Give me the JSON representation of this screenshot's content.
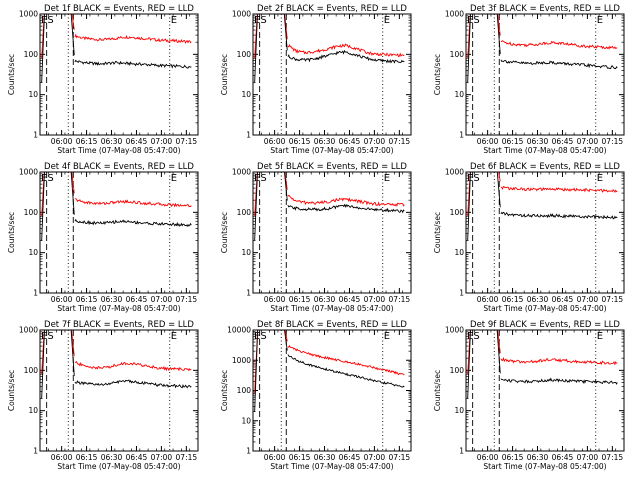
{
  "figure": {
    "colors": {
      "events": "#000000",
      "lld": "#ff0000",
      "axes": "#000000",
      "background": "#ffffff"
    }
  },
  "chart_data": [
    {
      "type": "line",
      "title": "Det 1f BLACK = Events, RED = LLD",
      "xlabel": "Start Time (07-May-08 05:47:00)",
      "ylabel": "Counts/sec",
      "yscale": "log",
      "ylim": [
        1,
        1000
      ],
      "yticks": [
        "1",
        "10",
        "100",
        "1000"
      ],
      "xlim": [
        "05:47",
        "07:22"
      ],
      "xticks": [
        "06:00",
        "06:15",
        "06:30",
        "06:45",
        "07:00",
        "07:15"
      ],
      "markers": [
        "ES",
        "E"
      ],
      "dotted_lines": [
        "06:04",
        "07:05"
      ],
      "dashed_lines": [
        "05:51",
        "06:07"
      ],
      "series": [
        {
          "color": "red",
          "x": [
            "06:08",
            "06:13",
            "06:18",
            "06:23",
            "06:28",
            "06:33",
            "06:38",
            "06:43",
            "06:48",
            "06:53",
            "06:58",
            "07:03",
            "07:08",
            "07:13",
            "07:18"
          ],
          "values": [
            290,
            250,
            240,
            230,
            235,
            250,
            270,
            265,
            250,
            240,
            225,
            220,
            215,
            210,
            205
          ]
        },
        {
          "color": "black",
          "x": [
            "06:08",
            "06:13",
            "06:18",
            "06:23",
            "06:28",
            "06:33",
            "06:38",
            "06:43",
            "06:48",
            "06:53",
            "06:58",
            "07:03",
            "07:08",
            "07:13",
            "07:18"
          ],
          "values": [
            68,
            63,
            60,
            58,
            60,
            62,
            60,
            58,
            57,
            55,
            53,
            52,
            51,
            50,
            49
          ]
        }
      ]
    },
    {
      "type": "line",
      "title": "Det 2f BLACK = Events, RED = LLD",
      "xlabel": "Start Time (07-May-08 05:47:00)",
      "ylabel": "Counts/sec",
      "yscale": "log",
      "ylim": [
        1,
        1000
      ],
      "yticks": [
        "1",
        "10",
        "100",
        "1000"
      ],
      "xlim": [
        "05:47",
        "07:22"
      ],
      "xticks": [
        "06:00",
        "06:15",
        "06:30",
        "06:45",
        "07:00",
        "07:15"
      ],
      "markers": [
        "ES",
        "E"
      ],
      "dotted_lines": [
        "06:04",
        "07:05"
      ],
      "dashed_lines": [
        "05:51",
        "06:07"
      ],
      "series": [
        {
          "color": "red",
          "x": [
            "06:08",
            "06:13",
            "06:18",
            "06:23",
            "06:28",
            "06:33",
            "06:38",
            "06:43",
            "06:48",
            "06:53",
            "06:58",
            "07:03",
            "07:08",
            "07:13",
            "07:18"
          ],
          "values": [
            170,
            120,
            110,
            115,
            125,
            140,
            160,
            165,
            145,
            120,
            105,
            100,
            98,
            96,
            95
          ]
        },
        {
          "color": "black",
          "x": [
            "06:08",
            "06:13",
            "06:18",
            "06:23",
            "06:28",
            "06:33",
            "06:38",
            "06:43",
            "06:48",
            "06:53",
            "06:58",
            "07:03",
            "07:08",
            "07:13",
            "07:18"
          ],
          "values": [
            90,
            75,
            72,
            75,
            85,
            95,
            110,
            115,
            100,
            85,
            75,
            70,
            68,
            66,
            65
          ]
        }
      ]
    },
    {
      "type": "line",
      "title": "Det 3f BLACK = Events, RED = LLD",
      "xlabel": "Start Time (07-May-08 05:47:00)",
      "ylabel": "Counts/sec",
      "yscale": "log",
      "ylim": [
        1,
        1000
      ],
      "yticks": [
        "1",
        "10",
        "100",
        "1000"
      ],
      "xlim": [
        "05:47",
        "07:22"
      ],
      "xticks": [
        "06:00",
        "06:15",
        "06:30",
        "06:45",
        "07:00",
        "07:15"
      ],
      "markers": [
        "ES",
        "E"
      ],
      "dotted_lines": [
        "06:04",
        "07:05"
      ],
      "dashed_lines": [
        "05:51",
        "06:07"
      ],
      "series": [
        {
          "color": "red",
          "x": [
            "06:08",
            "06:13",
            "06:18",
            "06:23",
            "06:28",
            "06:33",
            "06:38",
            "06:43",
            "06:48",
            "06:53",
            "06:58",
            "07:03",
            "07:08",
            "07:13",
            "07:18"
          ],
          "values": [
            210,
            185,
            175,
            170,
            175,
            185,
            195,
            190,
            180,
            170,
            160,
            155,
            150,
            148,
            145
          ]
        },
        {
          "color": "black",
          "x": [
            "06:08",
            "06:13",
            "06:18",
            "06:23",
            "06:28",
            "06:33",
            "06:38",
            "06:43",
            "06:48",
            "06:53",
            "06:58",
            "07:03",
            "07:08",
            "07:13",
            "07:18"
          ],
          "values": [
            72,
            65,
            62,
            60,
            60,
            62,
            63,
            60,
            58,
            56,
            54,
            52,
            50,
            48,
            47
          ]
        }
      ]
    },
    {
      "type": "line",
      "title": "Det 4f BLACK = Events, RED = LLD",
      "xlabel": "Start Time (07-May-08 05:47:00)",
      "ylabel": "Counts/sec",
      "yscale": "log",
      "ylim": [
        1,
        1000
      ],
      "yticks": [
        "1",
        "10",
        "100",
        "1000"
      ],
      "xlim": [
        "05:47",
        "07:22"
      ],
      "xticks": [
        "06:00",
        "06:15",
        "06:30",
        "06:45",
        "07:00",
        "07:15"
      ],
      "markers": [
        "ES",
        "E"
      ],
      "dotted_lines": [
        "06:04",
        "07:05"
      ],
      "dashed_lines": [
        "05:51",
        "06:07"
      ],
      "series": [
        {
          "color": "red",
          "x": [
            "06:08",
            "06:13",
            "06:18",
            "06:23",
            "06:28",
            "06:33",
            "06:38",
            "06:43",
            "06:48",
            "06:53",
            "06:58",
            "07:03",
            "07:08",
            "07:13",
            "07:18"
          ],
          "values": [
            210,
            180,
            170,
            165,
            170,
            180,
            185,
            180,
            170,
            165,
            160,
            155,
            152,
            150,
            148
          ]
        },
        {
          "color": "black",
          "x": [
            "06:08",
            "06:13",
            "06:18",
            "06:23",
            "06:28",
            "06:33",
            "06:38",
            "06:43",
            "06:48",
            "06:53",
            "06:58",
            "07:03",
            "07:08",
            "07:13",
            "07:18"
          ],
          "values": [
            62,
            58,
            55,
            54,
            55,
            58,
            60,
            57,
            55,
            53,
            52,
            51,
            50,
            49,
            48
          ]
        }
      ]
    },
    {
      "type": "line",
      "title": "Det 5f BLACK = Events, RED = LLD",
      "xlabel": "Start Time (07-May-08 05:47:00)",
      "ylabel": "Counts/sec",
      "yscale": "log",
      "ylim": [
        1,
        1000
      ],
      "yticks": [
        "1",
        "10",
        "100",
        "1000"
      ],
      "xlim": [
        "05:47",
        "07:22"
      ],
      "xticks": [
        "06:00",
        "06:15",
        "06:30",
        "06:45",
        "07:00",
        "07:15"
      ],
      "markers": [
        "ES",
        "E"
      ],
      "dotted_lines": [
        "06:04",
        "07:05"
      ],
      "dashed_lines": [
        "05:51",
        "06:07"
      ],
      "series": [
        {
          "color": "red",
          "x": [
            "06:08",
            "06:13",
            "06:18",
            "06:23",
            "06:28",
            "06:33",
            "06:38",
            "06:43",
            "06:48",
            "06:53",
            "06:58",
            "07:03",
            "07:08",
            "07:13",
            "07:18"
          ],
          "values": [
            260,
            190,
            175,
            170,
            175,
            185,
            205,
            210,
            195,
            180,
            165,
            160,
            158,
            156,
            155
          ]
        },
        {
          "color": "black",
          "x": [
            "06:08",
            "06:13",
            "06:18",
            "06:23",
            "06:28",
            "06:33",
            "06:38",
            "06:43",
            "06:48",
            "06:53",
            "06:58",
            "07:03",
            "07:08",
            "07:13",
            "07:18"
          ],
          "values": [
            140,
            125,
            120,
            118,
            120,
            125,
            140,
            145,
            135,
            125,
            118,
            115,
            112,
            110,
            108
          ]
        }
      ]
    },
    {
      "type": "line",
      "title": "Det 6f BLACK = Events, RED = LLD",
      "xlabel": "Start Time (07-May-08 05:47:00)",
      "ylabel": "Counts/sec",
      "yscale": "log",
      "ylim": [
        1,
        1000
      ],
      "yticks": [
        "1",
        "10",
        "100",
        "1000"
      ],
      "xlim": [
        "05:47",
        "07:22"
      ],
      "xticks": [
        "06:00",
        "06:15",
        "06:30",
        "06:45",
        "07:00",
        "07:15"
      ],
      "markers": [
        "ES",
        "E"
      ],
      "dotted_lines": [
        "06:04",
        "07:05"
      ],
      "dashed_lines": [
        "05:51",
        "06:07"
      ],
      "series": [
        {
          "color": "red",
          "x": [
            "06:08",
            "06:13",
            "06:18",
            "06:23",
            "06:28",
            "06:33",
            "06:38",
            "06:43",
            "06:48",
            "06:53",
            "06:58",
            "07:03",
            "07:08",
            "07:13",
            "07:18"
          ],
          "values": [
            420,
            390,
            380,
            375,
            370,
            370,
            375,
            372,
            368,
            362,
            355,
            350,
            345,
            340,
            335
          ]
        },
        {
          "color": "black",
          "x": [
            "06:08",
            "06:13",
            "06:18",
            "06:23",
            "06:28",
            "06:33",
            "06:38",
            "06:43",
            "06:48",
            "06:53",
            "06:58",
            "07:03",
            "07:08",
            "07:13",
            "07:18"
          ],
          "values": [
            95,
            88,
            85,
            83,
            82,
            82,
            83,
            82,
            80,
            79,
            78,
            77,
            76,
            75,
            74
          ]
        }
      ]
    },
    {
      "type": "line",
      "title": "Det 7f BLACK = Events, RED = LLD",
      "xlabel": "Start Time (07-May-08 05:47:00)",
      "ylabel": "Counts/sec",
      "yscale": "log",
      "ylim": [
        1,
        1000
      ],
      "yticks": [
        "1",
        "10",
        "100",
        "1000"
      ],
      "xlim": [
        "05:47",
        "07:22"
      ],
      "xticks": [
        "06:00",
        "06:15",
        "06:30",
        "06:45",
        "07:00",
        "07:15"
      ],
      "markers": [
        "ES",
        "E"
      ],
      "dotted_lines": [
        "06:04",
        "07:05"
      ],
      "dashed_lines": [
        "05:51",
        "06:07"
      ],
      "series": [
        {
          "color": "red",
          "x": [
            "06:08",
            "06:13",
            "06:18",
            "06:23",
            "06:28",
            "06:33",
            "06:38",
            "06:43",
            "06:48",
            "06:53",
            "06:58",
            "07:03",
            "07:08",
            "07:13",
            "07:18"
          ],
          "values": [
            160,
            130,
            120,
            115,
            120,
            135,
            150,
            145,
            135,
            125,
            115,
            110,
            108,
            106,
            104
          ]
        },
        {
          "color": "black",
          "x": [
            "06:08",
            "06:13",
            "06:18",
            "06:23",
            "06:28",
            "06:33",
            "06:38",
            "06:43",
            "06:48",
            "06:53",
            "06:58",
            "07:03",
            "07:08",
            "07:13",
            "07:18"
          ],
          "values": [
            52,
            47,
            45,
            44,
            46,
            50,
            55,
            53,
            49,
            46,
            43,
            42,
            41,
            40,
            40
          ]
        }
      ]
    },
    {
      "type": "line",
      "title": "Det 8f BLACK = Events, RED = LLD",
      "xlabel": "Start Time (07-May-08 05:47:00)",
      "ylabel": "Counts/sec",
      "yscale": "log",
      "ylim": [
        1,
        10000
      ],
      "yticks": [
        "1",
        "10",
        "100",
        "1000",
        "10000"
      ],
      "xlim": [
        "05:47",
        "07:22"
      ],
      "xticks": [
        "06:00",
        "06:15",
        "06:30",
        "06:45",
        "07:00",
        "07:15"
      ],
      "markers": [
        "ES",
        "E"
      ],
      "dotted_lines": [
        "06:04",
        "07:05"
      ],
      "dashed_lines": [
        "05:51",
        "06:07"
      ],
      "series": [
        {
          "color": "red",
          "x": [
            "06:08",
            "06:13",
            "06:18",
            "06:23",
            "06:28",
            "06:33",
            "06:38",
            "06:43",
            "06:48",
            "06:53",
            "06:58",
            "07:03",
            "07:08",
            "07:13",
            "07:18"
          ],
          "values": [
            3000,
            2200,
            1800,
            1500,
            1300,
            1150,
            1000,
            900,
            800,
            700,
            600,
            520,
            450,
            380,
            320
          ]
        },
        {
          "color": "black",
          "x": [
            "06:08",
            "06:13",
            "06:18",
            "06:23",
            "06:28",
            "06:33",
            "06:38",
            "06:43",
            "06:48",
            "06:53",
            "06:58",
            "07:03",
            "07:08",
            "07:13",
            "07:18"
          ],
          "values": [
            1500,
            1000,
            800,
            650,
            550,
            470,
            400,
            350,
            300,
            260,
            220,
            190,
            170,
            150,
            130
          ]
        }
      ]
    },
    {
      "type": "line",
      "title": "Det 9f BLACK = Events, RED = LLD",
      "xlabel": "Start Time (07-May-08 05:47:00)",
      "ylabel": "Counts/sec",
      "yscale": "log",
      "ylim": [
        1,
        1000
      ],
      "yticks": [
        "1",
        "10",
        "100",
        "1000"
      ],
      "xlim": [
        "05:47",
        "07:22"
      ],
      "xticks": [
        "06:00",
        "06:15",
        "06:30",
        "06:45",
        "07:00",
        "07:15"
      ],
      "markers": [
        "ES",
        "E"
      ],
      "dotted_lines": [
        "06:04",
        "07:05"
      ],
      "dashed_lines": [
        "05:51",
        "06:07"
      ],
      "series": [
        {
          "color": "red",
          "x": [
            "06:08",
            "06:13",
            "06:18",
            "06:23",
            "06:28",
            "06:33",
            "06:38",
            "06:43",
            "06:48",
            "06:53",
            "06:58",
            "07:03",
            "07:08",
            "07:13",
            "07:18"
          ],
          "values": [
            190,
            170,
            165,
            160,
            165,
            175,
            185,
            180,
            170,
            165,
            160,
            158,
            155,
            153,
            150
          ]
        },
        {
          "color": "black",
          "x": [
            "06:08",
            "06:13",
            "06:18",
            "06:23",
            "06:28",
            "06:33",
            "06:38",
            "06:43",
            "06:48",
            "06:53",
            "06:58",
            "07:03",
            "07:08",
            "07:13",
            "07:18"
          ],
          "values": [
            60,
            56,
            54,
            53,
            54,
            56,
            58,
            57,
            55,
            54,
            53,
            52,
            51,
            50,
            50
          ]
        }
      ]
    }
  ]
}
